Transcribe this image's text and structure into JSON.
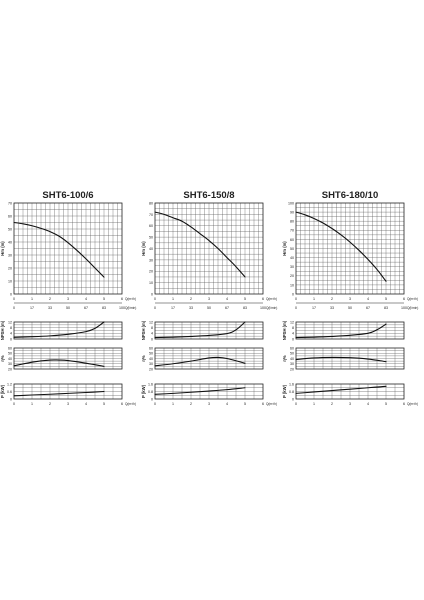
{
  "chart_data": [
    {
      "type": "line",
      "title": "SHT6-100/6",
      "x_flow_m3h": [
        0,
        1,
        2,
        3,
        4,
        5,
        6
      ],
      "x_flow_lmin": [
        0,
        17,
        33,
        50,
        67,
        83,
        100
      ],
      "x_unit_top": "Q(m³/h)",
      "x_unit_bottom": "Q(l/min)",
      "x_unit_panel": "Q(m³/h)",
      "head": {
        "ylabel": "Hm (m)",
        "ylim": [
          0,
          70
        ],
        "yticks": [
          0,
          10,
          20,
          30,
          40,
          50,
          60,
          70
        ],
        "x": [
          0,
          0.5,
          1,
          1.5,
          2,
          2.5,
          3,
          3.5,
          4,
          4.5,
          5
        ],
        "y": [
          55,
          54,
          52.5,
          50.5,
          48,
          44.5,
          39.5,
          33.5,
          27,
          20,
          13
        ]
      },
      "npsh": {
        "ylabel": "NPSH (m)",
        "ylim": [
          0,
          12
        ],
        "yticks": [
          0,
          4,
          8,
          12
        ],
        "x": [
          0,
          1,
          2,
          3,
          4,
          4.5,
          5
        ],
        "y": [
          1.2,
          1.6,
          2.2,
          3.3,
          5.2,
          7.5,
          12
        ]
      },
      "efficiency": {
        "ylabel": "η%",
        "ylim": [
          20,
          60
        ],
        "yticks": [
          20,
          30,
          40,
          50,
          60
        ],
        "x": [
          0,
          1,
          2,
          2.5,
          3,
          4,
          5
        ],
        "y": [
          26,
          33,
          37,
          37,
          36,
          31,
          25
        ]
      },
      "power": {
        "ylabel": "P (kW)",
        "ylim": [
          0,
          1.2
        ],
        "yticks": [
          0,
          0.6,
          1.2
        ],
        "x": [
          0,
          1,
          2,
          3,
          4,
          5
        ],
        "y": [
          0.25,
          0.32,
          0.38,
          0.45,
          0.52,
          0.6
        ]
      }
    },
    {
      "type": "line",
      "title": "SHT6-150/8",
      "x_flow_m3h": [
        0,
        1,
        2,
        3,
        4,
        5,
        6
      ],
      "x_flow_lmin": [
        0,
        17,
        33,
        50,
        67,
        83,
        100
      ],
      "x_unit_top": "Q(m³/h)",
      "x_unit_bottom": "Q(l/min)",
      "x_unit_panel": "Q(m³/h)",
      "head": {
        "ylabel": "Hm (m)",
        "ylim": [
          0,
          80
        ],
        "yticks": [
          0,
          10,
          20,
          30,
          40,
          50,
          60,
          70,
          80
        ],
        "x": [
          0,
          0.5,
          1,
          1.5,
          2,
          2.5,
          3,
          3.5,
          4,
          4.5,
          5
        ],
        "y": [
          72,
          70,
          67,
          64,
          59,
          53,
          47,
          40,
          32,
          24,
          15
        ]
      },
      "npsh": {
        "ylabel": "NPSH (m)",
        "ylim": [
          0,
          12
        ],
        "yticks": [
          0,
          4,
          8,
          12
        ],
        "x": [
          0,
          1,
          2,
          3,
          4,
          4.5,
          5
        ],
        "y": [
          1.0,
          1.3,
          1.8,
          2.5,
          3.8,
          6.5,
          12
        ]
      },
      "efficiency": {
        "ylabel": "η%",
        "ylim": [
          20,
          60
        ],
        "yticks": [
          20,
          30,
          40,
          50,
          60
        ],
        "x": [
          0,
          1,
          2,
          3,
          3.5,
          4,
          5
        ],
        "y": [
          26,
          30,
          35,
          41,
          42,
          40,
          31
        ]
      },
      "power": {
        "ylabel": "P (kW)",
        "ylim": [
          0,
          1.6
        ],
        "yticks": [
          0,
          0.8,
          1.6
        ],
        "x": [
          0,
          1,
          2,
          3,
          4,
          5
        ],
        "y": [
          0.5,
          0.6,
          0.72,
          0.85,
          1.0,
          1.2
        ]
      }
    },
    {
      "type": "line",
      "title": "SHT6-180/10",
      "x_flow_m3h": [
        0,
        1,
        2,
        3,
        4,
        5,
        6
      ],
      "x_flow_lmin": [
        0,
        17,
        33,
        50,
        67,
        83,
        100
      ],
      "x_unit_top": "Q(m³/h)",
      "x_unit_bottom": "Q(l/min)",
      "x_unit_panel": "Q(m³/h)",
      "head": {
        "ylabel": "Hm (m)",
        "ylim": [
          0,
          100
        ],
        "yticks": [
          0,
          10,
          20,
          30,
          40,
          50,
          60,
          70,
          80,
          90,
          100
        ],
        "x": [
          0,
          0.5,
          1,
          1.5,
          2,
          2.5,
          3,
          3.5,
          4,
          4.5,
          5
        ],
        "y": [
          90,
          87,
          83,
          78,
          72,
          65,
          57,
          48,
          38,
          27,
          14
        ]
      },
      "npsh": {
        "ylabel": "NPSH (m)",
        "ylim": [
          0,
          12
        ],
        "yticks": [
          0,
          4,
          8,
          12
        ],
        "x": [
          0,
          1,
          2,
          3,
          4,
          4.5,
          5
        ],
        "y": [
          1.0,
          1.3,
          1.8,
          2.6,
          4.0,
          6.5,
          10.5
        ]
      },
      "efficiency": {
        "ylabel": "η%",
        "ylim": [
          20,
          60
        ],
        "yticks": [
          20,
          30,
          40,
          50,
          60
        ],
        "x": [
          0,
          1,
          2,
          3,
          4,
          5
        ],
        "y": [
          38,
          41,
          42,
          41.5,
          39,
          34
        ]
      },
      "power": {
        "ylabel": "P (kW)",
        "ylim": [
          0,
          1.6
        ],
        "yticks": [
          0,
          0.8,
          1.6
        ],
        "x": [
          0,
          1,
          2,
          3,
          4,
          5
        ],
        "y": [
          0.6,
          0.75,
          0.9,
          1.05,
          1.2,
          1.35
        ]
      }
    }
  ],
  "colors": {
    "curve": "#111111",
    "grid": "#555555",
    "frame": "#222222",
    "text": "#222222"
  }
}
